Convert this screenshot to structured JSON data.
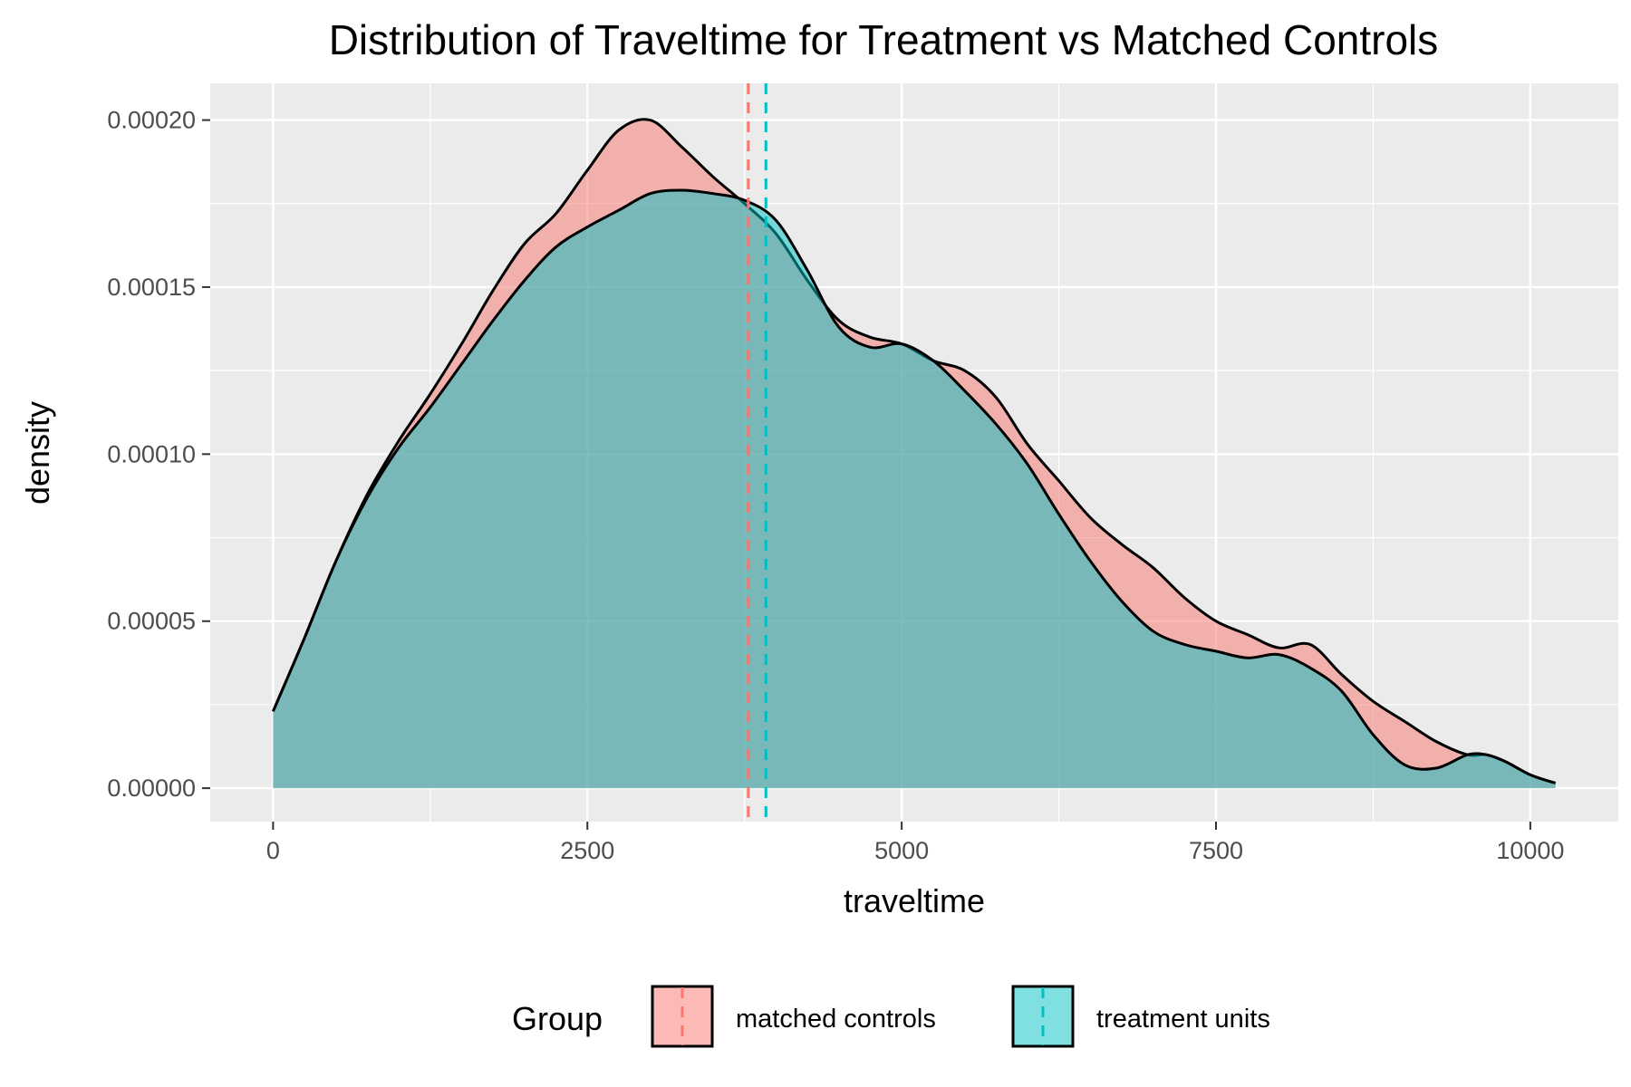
{
  "chart_data": {
    "type": "area",
    "title": "Distribution of Traveltime for Treatment vs Matched Controls",
    "xlabel": "traveltime",
    "ylabel": "density",
    "xlim": [
      -500,
      10700
    ],
    "ylim": [
      -1e-05,
      0.000211
    ],
    "x_ticks": [
      0,
      2500,
      5000,
      7500,
      10000
    ],
    "x_tick_labels": [
      "0",
      "2500",
      "5000",
      "7500",
      "10000"
    ],
    "y_ticks": [
      0,
      5e-05,
      0.0001,
      0.00015,
      0.0002
    ],
    "y_tick_labels": [
      "0.00000",
      "0.00005",
      "0.00010",
      "0.00015",
      "0.00020"
    ],
    "grid": true,
    "legend": {
      "title": "Group",
      "position": "bottom"
    },
    "series": [
      {
        "name": "matched controls",
        "color": "#F8766D",
        "fill_alpha": 0.5,
        "mean_line": 3780,
        "x": [
          0,
          250,
          500,
          750,
          1000,
          1250,
          1500,
          1750,
          2000,
          2250,
          2500,
          2750,
          3000,
          3250,
          3500,
          3750,
          4000,
          4250,
          4500,
          4750,
          5000,
          5250,
          5500,
          5750,
          6000,
          6250,
          6500,
          6750,
          7000,
          7250,
          7500,
          7750,
          8000,
          8250,
          8500,
          8750,
          9000,
          9250,
          9500,
          9650,
          9800,
          10000,
          10200
        ],
        "y": [
          2.3e-05,
          4.5e-05,
          6.8e-05,
          8.8e-05,
          0.000104,
          0.000118,
          0.000133,
          0.000149,
          0.000163,
          0.000172,
          0.000185,
          0.000197,
          0.0002,
          0.000192,
          0.000183,
          0.000175,
          0.000166,
          0.000152,
          0.00014,
          0.000135,
          0.000133,
          0.000128,
          0.000125,
          0.000117,
          0.000103,
          9.2e-05,
          8.1e-05,
          7.3e-05,
          6.6e-05,
          5.7e-05,
          5e-05,
          4.6e-05,
          4.2e-05,
          4.3e-05,
          3.4e-05,
          2.6e-05,
          2e-05,
          1.4e-05,
          1e-05,
          1e-05,
          8e-06,
          4e-06,
          1.5e-06
        ]
      },
      {
        "name": "treatment units",
        "color": "#00BFC4",
        "fill_alpha": 0.5,
        "mean_line": 3920,
        "x": [
          0,
          250,
          500,
          750,
          1000,
          1250,
          1500,
          1750,
          2000,
          2250,
          2500,
          2750,
          3000,
          3250,
          3500,
          3750,
          4000,
          4250,
          4500,
          4750,
          5000,
          5250,
          5500,
          5750,
          6000,
          6250,
          6500,
          6750,
          7000,
          7250,
          7500,
          7750,
          8000,
          8250,
          8500,
          8750,
          9000,
          9250,
          9500,
          9650,
          9800,
          10000,
          10200
        ],
        "y": [
          2.3e-05,
          4.5e-05,
          6.8e-05,
          8.7e-05,
          0.000102,
          0.000114,
          0.000127,
          0.00014,
          0.000152,
          0.000162,
          0.000168,
          0.000173,
          0.000178,
          0.000179,
          0.000178,
          0.000176,
          0.00017,
          0.000155,
          0.000138,
          0.000132,
          0.000133,
          0.000128,
          0.000119,
          0.000109,
          9.7e-05,
          8.2e-05,
          6.8e-05,
          5.6e-05,
          4.7e-05,
          4.3e-05,
          4.1e-05,
          3.9e-05,
          4e-05,
          3.6e-05,
          2.9e-05,
          1.6e-05,
          7e-06,
          6e-06,
          1e-05,
          1e-05,
          8e-06,
          4e-06,
          1.5e-06
        ]
      }
    ]
  }
}
